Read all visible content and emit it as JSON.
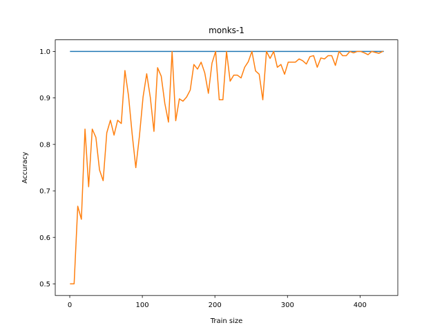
{
  "chart_data": {
    "type": "line",
    "title": "monks-1",
    "xlabel": "Train size",
    "ylabel": "Accuracy",
    "xlim": [
      -20,
      452
    ],
    "ylim": [
      0.475,
      1.025
    ],
    "xticks": [
      0,
      100,
      200,
      300,
      400
    ],
    "yticks": [
      0.5,
      0.6,
      0.7,
      0.8,
      0.9,
      1.0
    ],
    "xtick_labels": [
      "0",
      "100",
      "200",
      "300",
      "400"
    ],
    "ytick_labels": [
      "0.5",
      "0.6",
      "0.7",
      "0.8",
      "0.9",
      "1.0"
    ],
    "grid": false,
    "series": [
      {
        "color": "#1f77b4",
        "x": [
          1,
          432
        ],
        "y": [
          1.0,
          1.0
        ]
      },
      {
        "color": "#ff7f0e",
        "x": [
          1,
          6,
          11,
          16,
          21,
          26,
          31,
          36,
          41,
          46,
          51,
          56,
          61,
          66,
          71,
          76,
          81,
          86,
          91,
          96,
          101,
          106,
          111,
          116,
          121,
          126,
          131,
          136,
          141,
          146,
          151,
          156,
          161,
          166,
          171,
          176,
          181,
          186,
          191,
          196,
          201,
          206,
          211,
          216,
          221,
          226,
          231,
          236,
          241,
          246,
          251,
          256,
          261,
          266,
          271,
          276,
          281,
          286,
          291,
          296,
          301,
          306,
          311,
          316,
          321,
          326,
          331,
          336,
          341,
          346,
          351,
          356,
          361,
          366,
          371,
          376,
          381,
          386,
          391,
          396,
          401,
          406,
          411,
          416,
          421,
          426,
          431
        ],
        "y": [
          0.5,
          0.5,
          0.667,
          0.639,
          0.833,
          0.709,
          0.833,
          0.815,
          0.745,
          0.722,
          0.825,
          0.852,
          0.82,
          0.852,
          0.845,
          0.959,
          0.904,
          0.822,
          0.75,
          0.818,
          0.902,
          0.952,
          0.901,
          0.828,
          0.965,
          0.947,
          0.888,
          0.848,
          1.0,
          0.851,
          0.898,
          0.893,
          0.902,
          0.917,
          0.972,
          0.962,
          0.977,
          0.954,
          0.91,
          0.975,
          1.0,
          0.896,
          0.896,
          1.0,
          0.936,
          0.949,
          0.949,
          0.943,
          0.966,
          0.978,
          1.0,
          0.958,
          0.951,
          0.896,
          1.0,
          0.985,
          1.0,
          0.966,
          0.972,
          0.951,
          0.977,
          0.977,
          0.977,
          0.984,
          0.98,
          0.973,
          0.989,
          0.991,
          0.966,
          0.986,
          0.984,
          0.991,
          0.991,
          0.97,
          1.0,
          0.991,
          0.991,
          1.0,
          0.997,
          1.0,
          1.0,
          0.997,
          0.993,
          1.0,
          0.998,
          0.996,
          1.0
        ]
      }
    ]
  }
}
